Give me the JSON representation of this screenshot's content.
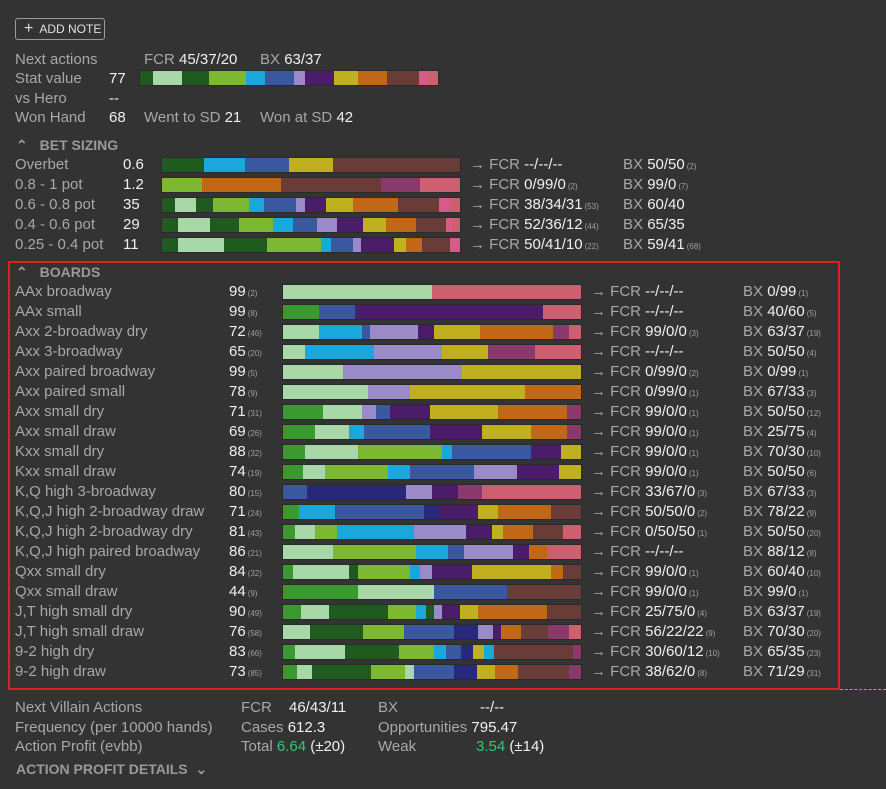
{
  "add_note": {
    "label": "ADD NOTE",
    "icon": "plus-icon"
  },
  "summary": {
    "next_actions_label": "Next actions",
    "fcr_label": "FCR",
    "fcr_value": "45/37/20",
    "bx_label": "BX",
    "bx_value": "63/37",
    "stat_value_label": "Stat value",
    "stat_value": "77",
    "vs_hero_label": "vs Hero",
    "vs_hero_value": "--",
    "won_hand_label": "Won Hand",
    "won_hand_value": "68",
    "went_sd_label": "Went to SD",
    "went_sd_value": "21",
    "won_sd_label": "Won at SD",
    "won_sd_value": "42"
  },
  "colors": {
    "dkgreen": "#1f5a1f",
    "ltgreen": "#7cb832",
    "pale": "#a8d8a8",
    "cyan": "#1aa8dc",
    "blue": "#3a58a0",
    "navy": "#28287a",
    "lav": "#9a8ac8",
    "purple": "#4a1c6a",
    "olive": "#c0b020",
    "orange": "#c06818",
    "brown": "#6a3c38",
    "plum": "#8a3a6a",
    "salmon": "#cc6070",
    "grn2": "#3a9a30",
    "pink": "#d85a8a"
  },
  "stat_bar": [
    [
      "dkgreen",
      12
    ],
    [
      "pale",
      28
    ],
    [
      "dkgreen",
      25
    ],
    [
      "ltgreen",
      35
    ],
    [
      "cyan",
      18
    ],
    [
      "blue",
      28
    ],
    [
      "lav",
      10
    ],
    [
      "purple",
      28
    ],
    [
      "olive",
      22
    ],
    [
      "orange",
      28
    ],
    [
      "brown",
      30
    ],
    [
      "pink",
      8
    ],
    [
      "salmon",
      10
    ]
  ],
  "bet_sizing": {
    "title": "BET SIZING",
    "rows": [
      {
        "label": "Overbet",
        "value": "0.6",
        "fcr": "--/--/--",
        "fcr_n": "",
        "bx": "50/50",
        "bx_n": "(2)",
        "bar": [
          [
            "dkgreen",
            42
          ],
          [
            "cyan",
            42
          ],
          [
            "blue",
            44
          ],
          [
            "olive",
            44
          ],
          [
            "brown",
            128
          ]
        ]
      },
      {
        "label": "0.8 - 1 pot",
        "value": "1.2",
        "fcr": "0/99/0",
        "fcr_n": "(2)",
        "bx": "99/0",
        "bx_n": "(7)",
        "bar": [
          [
            "ltgreen",
            40
          ],
          [
            "orange",
            80
          ],
          [
            "brown",
            100
          ],
          [
            "plum",
            40
          ],
          [
            "salmon",
            40
          ]
        ]
      },
      {
        "label": "0.6 - 0.8 pot",
        "value": "35",
        "fcr": "38/34/31",
        "fcr_n": "(53)",
        "bx": "60/40",
        "bx_n": "",
        "bar": [
          [
            "dkgreen",
            12
          ],
          [
            "pale",
            20
          ],
          [
            "dkgreen",
            16
          ],
          [
            "ltgreen",
            34
          ],
          [
            "cyan",
            14
          ],
          [
            "blue",
            30
          ],
          [
            "lav",
            8
          ],
          [
            "purple",
            20
          ],
          [
            "olive",
            26
          ],
          [
            "orange",
            42
          ],
          [
            "brown",
            38
          ],
          [
            "pink",
            10
          ],
          [
            "salmon",
            10
          ]
        ]
      },
      {
        "label": "0.4 - 0.6 pot",
        "value": "29",
        "fcr": "52/36/12",
        "fcr_n": "(44)",
        "bx": "65/35",
        "bx_n": "",
        "bar": [
          [
            "dkgreen",
            16
          ],
          [
            "pale",
            32
          ],
          [
            "dkgreen",
            30
          ],
          [
            "ltgreen",
            34
          ],
          [
            "cyan",
            20
          ],
          [
            "blue",
            24
          ],
          [
            "lav",
            20
          ],
          [
            "purple",
            26
          ],
          [
            "olive",
            24
          ],
          [
            "orange",
            30
          ],
          [
            "brown",
            30
          ],
          [
            "pink",
            6
          ],
          [
            "salmon",
            8
          ]
        ]
      },
      {
        "label": "0.25 - 0.4 pot",
        "value": "11",
        "fcr": "50/41/10",
        "fcr_n": "(22)",
        "bx": "59/41",
        "bx_n": "(68)",
        "bar": [
          [
            "dkgreen",
            16
          ],
          [
            "pale",
            46
          ],
          [
            "dkgreen",
            44
          ],
          [
            "ltgreen",
            54
          ],
          [
            "cyan",
            10
          ],
          [
            "blue",
            22
          ],
          [
            "lav",
            8
          ],
          [
            "purple",
            34
          ],
          [
            "olive",
            12
          ],
          [
            "orange",
            16
          ],
          [
            "brown",
            28
          ],
          [
            "pink",
            10
          ]
        ]
      }
    ]
  },
  "boards": {
    "title": "BOARDS",
    "rows": [
      {
        "label": "AAx broadway",
        "value": "99",
        "n": "(2)",
        "fcr": "--/--/--",
        "fcr_n": "",
        "bx": "0/99",
        "bx_n": "(1)",
        "bar": [
          [
            "pale",
            150
          ],
          [
            "salmon",
            150
          ]
        ]
      },
      {
        "label": "AAx small",
        "value": "99",
        "n": "(8)",
        "fcr": "--/--/--",
        "fcr_n": "",
        "bx": "40/60",
        "bx_n": "(5)",
        "bar": [
          [
            "grn2",
            36
          ],
          [
            "blue",
            36
          ],
          [
            "purple",
            38
          ],
          [
            "purple",
            152
          ],
          [
            "salmon",
            38
          ]
        ]
      },
      {
        "label": "Axx 2-broadway dry",
        "value": "72",
        "n": "(46)",
        "fcr": "99/0/0",
        "fcr_n": "(3)",
        "bx": "63/37",
        "bx_n": "(19)",
        "bar": [
          [
            "pale",
            36
          ],
          [
            "cyan",
            44
          ],
          [
            "blue",
            8
          ],
          [
            "lav",
            48
          ],
          [
            "purple",
            16
          ],
          [
            "olive",
            46
          ],
          [
            "orange",
            74
          ],
          [
            "plum",
            16
          ],
          [
            "salmon",
            12
          ]
        ]
      },
      {
        "label": "Axx 3-broadway",
        "value": "65",
        "n": "(20)",
        "fcr": "--/--/--",
        "fcr_n": "",
        "bx": "50/50",
        "bx_n": "(4)",
        "bar": [
          [
            "pale",
            22
          ],
          [
            "cyan",
            70
          ],
          [
            "lav",
            68
          ],
          [
            "olive",
            46
          ],
          [
            "plum",
            48
          ],
          [
            "salmon",
            46
          ]
        ]
      },
      {
        "label": "Axx paired broadway",
        "value": "99",
        "n": "(5)",
        "fcr": "0/99/0",
        "fcr_n": "(2)",
        "bx": "0/99",
        "bx_n": "(1)",
        "bar": [
          [
            "pale",
            60
          ],
          [
            "lav",
            120
          ],
          [
            "olive",
            120
          ]
        ]
      },
      {
        "label": "Axx paired small",
        "value": "78",
        "n": "(9)",
        "fcr": "0/99/0",
        "fcr_n": "(1)",
        "bx": "67/33",
        "bx_n": "(3)",
        "bar": [
          [
            "pale",
            86
          ],
          [
            "lav",
            42
          ],
          [
            "olive",
            116
          ],
          [
            "orange",
            56
          ]
        ]
      },
      {
        "label": "Axx small dry",
        "value": "71",
        "n": "(31)",
        "fcr": "99/0/0",
        "fcr_n": "(1)",
        "bx": "50/50",
        "bx_n": "(12)",
        "bar": [
          [
            "grn2",
            40
          ],
          [
            "pale",
            40
          ],
          [
            "lav",
            14
          ],
          [
            "blue",
            14
          ],
          [
            "purple",
            40
          ],
          [
            "olive",
            68
          ],
          [
            "orange",
            70
          ],
          [
            "plum",
            14
          ]
        ]
      },
      {
        "label": "Axx small draw",
        "value": "69",
        "n": "(26)",
        "fcr": "99/0/0",
        "fcr_n": "(1)",
        "bx": "25/75",
        "bx_n": "(4)",
        "bar": [
          [
            "grn2",
            32
          ],
          [
            "pale",
            34
          ],
          [
            "cyan",
            16
          ],
          [
            "blue",
            66
          ],
          [
            "purple",
            52
          ],
          [
            "olive",
            50
          ],
          [
            "orange",
            36
          ],
          [
            "plum",
            14
          ]
        ]
      },
      {
        "label": "Kxx small dry",
        "value": "88",
        "n": "(32)",
        "fcr": "99/0/0",
        "fcr_n": "(1)",
        "bx": "70/30",
        "bx_n": "(10)",
        "bar": [
          [
            "grn2",
            22
          ],
          [
            "pale",
            54
          ],
          [
            "ltgreen",
            84
          ],
          [
            "cyan",
            10
          ],
          [
            "blue",
            80
          ],
          [
            "purple",
            30
          ],
          [
            "olive",
            20
          ]
        ]
      },
      {
        "label": "Kxx small draw",
        "value": "74",
        "n": "(19)",
        "fcr": "99/0/0",
        "fcr_n": "(1)",
        "bx": "50/50",
        "bx_n": "(6)",
        "bar": [
          [
            "grn2",
            20
          ],
          [
            "pale",
            22
          ],
          [
            "ltgreen",
            64
          ],
          [
            "cyan",
            22
          ],
          [
            "blue",
            64
          ],
          [
            "lav",
            44
          ],
          [
            "purple",
            42
          ],
          [
            "olive",
            22
          ]
        ]
      },
      {
        "label": "K,Q high 3-broadway",
        "value": "80",
        "n": "(15)",
        "fcr": "33/67/0",
        "fcr_n": "(3)",
        "bx": "67/33",
        "bx_n": "(3)",
        "bar": [
          [
            "blue",
            24
          ],
          [
            "navy",
            100
          ],
          [
            "lav",
            26
          ],
          [
            "purple",
            26
          ],
          [
            "plum",
            24
          ],
          [
            "salmon",
            100
          ]
        ]
      },
      {
        "label": "K,Q,J high 2-broadway draw",
        "value": "71",
        "n": "(24)",
        "fcr": "50/50/0",
        "fcr_n": "(2)",
        "bx": "78/22",
        "bx_n": "(9)",
        "bar": [
          [
            "grn2",
            16
          ],
          [
            "cyan",
            36
          ],
          [
            "blue",
            90
          ],
          [
            "navy",
            16
          ],
          [
            "purple",
            38
          ],
          [
            "olive",
            20
          ],
          [
            "orange",
            54
          ],
          [
            "brown",
            30
          ]
        ]
      },
      {
        "label": "K,Q,J high 2-broadway dry",
        "value": "81",
        "n": "(43)",
        "fcr": "0/50/50",
        "fcr_n": "(1)",
        "bx": "50/50",
        "bx_n": "(20)",
        "bar": [
          [
            "grn2",
            12
          ],
          [
            "pale",
            20
          ],
          [
            "ltgreen",
            22
          ],
          [
            "cyan",
            78
          ],
          [
            "lav",
            52
          ],
          [
            "purple",
            26
          ],
          [
            "olive",
            12
          ],
          [
            "orange",
            30
          ],
          [
            "brown",
            30
          ],
          [
            "salmon",
            18
          ]
        ]
      },
      {
        "label": "K,Q,J high paired broadway",
        "value": "86",
        "n": "(21)",
        "fcr": "--/--/--",
        "fcr_n": "",
        "bx": "88/12",
        "bx_n": "(8)",
        "bar": [
          [
            "pale",
            50
          ],
          [
            "ltgreen",
            84
          ],
          [
            "cyan",
            32
          ],
          [
            "blue",
            16
          ],
          [
            "lav",
            50
          ],
          [
            "purple",
            16
          ],
          [
            "orange",
            18
          ],
          [
            "salmon",
            34
          ]
        ]
      },
      {
        "label": "Qxx small dry",
        "value": "84",
        "n": "(32)",
        "fcr": "99/0/0",
        "fcr_n": "(1)",
        "bx": "60/40",
        "bx_n": "(10)",
        "bar": [
          [
            "grn2",
            10
          ],
          [
            "pale",
            56
          ],
          [
            "dkgreen",
            10
          ],
          [
            "ltgreen",
            52
          ],
          [
            "cyan",
            10
          ],
          [
            "lav",
            12
          ],
          [
            "purple",
            10
          ],
          [
            "purple",
            30
          ],
          [
            "olive",
            80
          ],
          [
            "orange",
            12
          ],
          [
            "brown",
            18
          ]
        ]
      },
      {
        "label": "Qxx small draw",
        "value": "44",
        "n": "(9)",
        "fcr": "99/0/0",
        "fcr_n": "(1)",
        "bx": "99/0",
        "bx_n": "(1)",
        "bar": [
          [
            "grn2",
            76
          ],
          [
            "pale",
            76
          ],
          [
            "blue",
            74
          ],
          [
            "brown",
            74
          ]
        ]
      },
      {
        "label": "J,T high small dry",
        "value": "90",
        "n": "(49)",
        "fcr": "25/75/0",
        "fcr_n": "(4)",
        "bx": "63/37",
        "bx_n": "(19)",
        "bar": [
          [
            "grn2",
            18
          ],
          [
            "pale",
            28
          ],
          [
            "dkgreen",
            60
          ],
          [
            "ltgreen",
            28
          ],
          [
            "cyan",
            10
          ],
          [
            "dkgreen",
            8
          ],
          [
            "lav",
            8
          ],
          [
            "purple",
            18
          ],
          [
            "olive",
            18
          ],
          [
            "orange",
            70
          ],
          [
            "brown",
            34
          ]
        ]
      },
      {
        "label": "J,T high small draw",
        "value": "76",
        "n": "(58)",
        "fcr": "56/22/22",
        "fcr_n": "(9)",
        "bx": "70/30",
        "bx_n": "(20)",
        "bar": [
          [
            "pale",
            26
          ],
          [
            "dkgreen",
            52
          ],
          [
            "ltgreen",
            40
          ],
          [
            "blue",
            48
          ],
          [
            "navy",
            24
          ],
          [
            "lav",
            14
          ],
          [
            "purple",
            8
          ],
          [
            "orange",
            20
          ],
          [
            "brown",
            26
          ],
          [
            "plum",
            20
          ],
          [
            "salmon",
            12
          ]
        ]
      },
      {
        "label": "9-2 high dry",
        "value": "83",
        "n": "(66)",
        "fcr": "30/60/12",
        "fcr_n": "(10)",
        "bx": "65/35",
        "bx_n": "(23)",
        "bar": [
          [
            "grn2",
            12
          ],
          [
            "pale",
            48
          ],
          [
            "dkgreen",
            52
          ],
          [
            "ltgreen",
            34
          ],
          [
            "cyan",
            12
          ],
          [
            "blue",
            14
          ],
          [
            "navy",
            12
          ],
          [
            "olive",
            10
          ],
          [
            "cyan",
            10
          ],
          [
            "brown",
            76
          ],
          [
            "plum",
            8
          ]
        ]
      },
      {
        "label": "9-2 high draw",
        "value": "73",
        "n": "(85)",
        "fcr": "38/62/0",
        "fcr_n": "(8)",
        "bx": "71/29",
        "bx_n": "(31)",
        "bar": [
          [
            "grn2",
            14
          ],
          [
            "pale",
            14
          ],
          [
            "dkgreen",
            58
          ],
          [
            "ltgreen",
            34
          ],
          [
            "pale",
            8
          ],
          [
            "blue",
            40
          ],
          [
            "navy",
            22
          ],
          [
            "olive",
            18
          ],
          [
            "orange",
            22
          ],
          [
            "brown",
            50
          ],
          [
            "plum",
            12
          ]
        ]
      }
    ]
  },
  "villain": {
    "next_label": "Next Villain Actions",
    "fcr_label": "FCR",
    "fcr_value": "46/43/11",
    "bx_label": "BX",
    "bx_value": "--/--",
    "freq_label": "Frequency (per 10000 hands)",
    "cases_label": "Cases",
    "cases_value": "612.3",
    "opp_label": "Opportunities",
    "opp_value": "795.47",
    "profit_label": "Action Profit (evbb)",
    "total_label": "Total",
    "total_value": "6.64",
    "total_pm": "(±20)",
    "weak_label": "Weak",
    "weak_value": "3.54",
    "weak_pm": "(±14)",
    "details_label": "ACTION PROFIT DETAILS"
  },
  "arrow": "→"
}
